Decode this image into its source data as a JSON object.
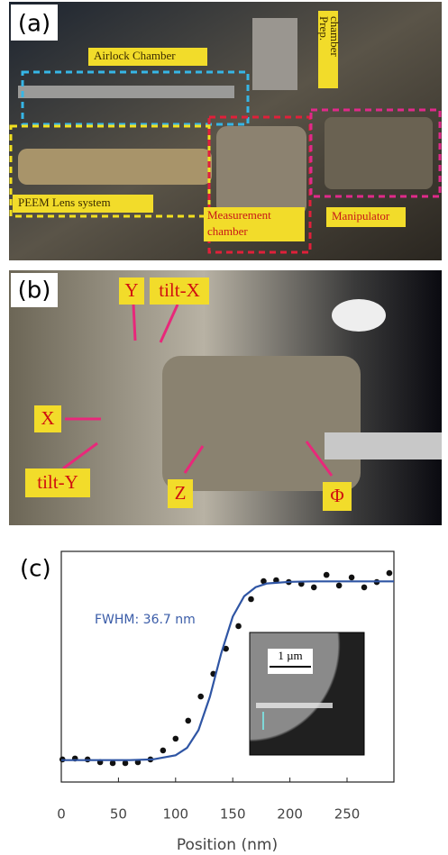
{
  "photo_a": {
    "label": "(a)",
    "airlock": "Airlock Chamber",
    "prep": [
      "Prep.",
      "chamber"
    ],
    "lens": "PEEM Lens system",
    "measurement": [
      "Measurement",
      "chamber"
    ],
    "manipulator": "Manipulator"
  },
  "photo_b": {
    "label": "(b)",
    "axes": [
      "Y",
      "tilt-X",
      "X",
      "tilt-Y",
      "Z",
      "Φ"
    ]
  },
  "chart_data": {
    "type": "scatter",
    "panel_label": "(c)",
    "xlabel": "Position (nm)",
    "annotation": "FWHM: 36.7 nm",
    "inset_scale_label": "1 µm",
    "xlim": [
      0,
      291
    ],
    "xticks": [
      0,
      50,
      100,
      150,
      200,
      250
    ],
    "ylim": [
      0,
      1
    ],
    "series": [
      {
        "mode": "markers",
        "color": "#111111",
        "x": [
          1,
          12,
          23,
          34,
          45,
          56,
          67,
          78,
          89,
          100,
          111,
          122,
          133,
          144,
          155,
          166,
          177,
          188,
          199,
          210,
          221,
          232,
          243,
          254,
          265,
          276,
          287
        ],
        "values": [
          0.098,
          0.102,
          0.098,
          0.086,
          0.082,
          0.082,
          0.086,
          0.098,
          0.137,
          0.188,
          0.266,
          0.371,
          0.469,
          0.578,
          0.676,
          0.793,
          0.871,
          0.875,
          0.867,
          0.859,
          0.844,
          0.898,
          0.852,
          0.887,
          0.844,
          0.867,
          0.906
        ]
      },
      {
        "mode": "line",
        "color": "#2f55a4",
        "x": [
          0,
          20,
          40,
          60,
          80,
          100,
          110,
          120,
          130,
          140,
          150,
          160,
          170,
          180,
          200,
          220,
          240,
          260,
          280,
          291
        ],
        "values": [
          0.095,
          0.095,
          0.095,
          0.095,
          0.098,
          0.116,
          0.148,
          0.225,
          0.369,
          0.559,
          0.717,
          0.806,
          0.845,
          0.861,
          0.868,
          0.87,
          0.87,
          0.87,
          0.87,
          0.87
        ]
      }
    ]
  }
}
